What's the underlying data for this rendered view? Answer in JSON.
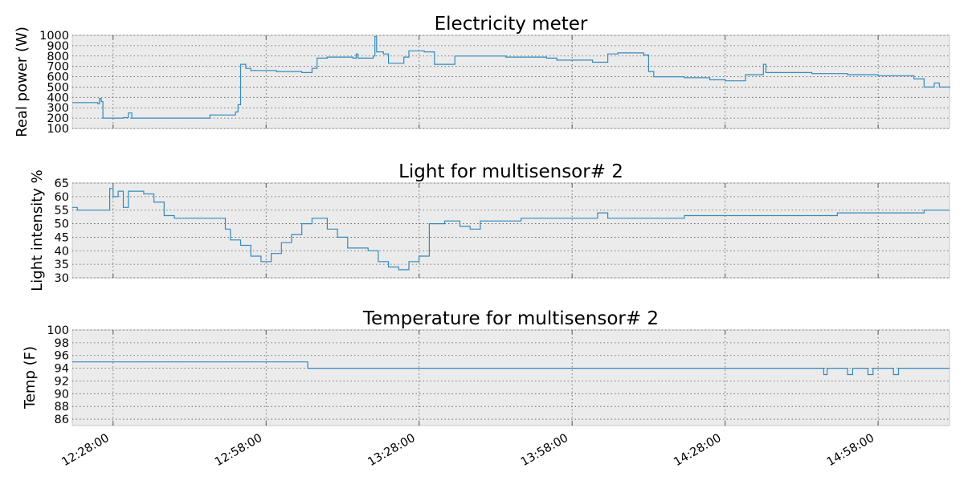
{
  "chart_data": {
    "type": "line",
    "x_ticks": [
      "12:28:00",
      "12:58:00",
      "13:28:00",
      "13:58:00",
      "14:28:00",
      "14:58:00"
    ],
    "xlim": [
      "12:20:00",
      "15:12:00"
    ],
    "grid": true,
    "panels": [
      {
        "title": "Electricity meter",
        "ylabel": "Real power (W)",
        "ylim": [
          100,
          1000
        ],
        "y_ticks": [
          100,
          200,
          300,
          400,
          500,
          600,
          700,
          800,
          900,
          1000
        ],
        "series": [
          {
            "color": "#348abd",
            "points": [
              [
                "12:20:00",
                350
              ],
              [
                "12:25:00",
                340
              ],
              [
                "12:25:20",
                390
              ],
              [
                "12:25:40",
                360
              ],
              [
                "12:26:00",
                200
              ],
              [
                "12:30:00",
                205
              ],
              [
                "12:31:00",
                250
              ],
              [
                "12:31:40",
                200
              ],
              [
                "12:45:00",
                200
              ],
              [
                "12:47:00",
                230
              ],
              [
                "12:52:00",
                260
              ],
              [
                "12:52:30",
                330
              ],
              [
                "12:53:00",
                720
              ],
              [
                "12:54:00",
                680
              ],
              [
                "12:55:00",
                660
              ],
              [
                "13:00:00",
                650
              ],
              [
                "13:05:00",
                640
              ],
              [
                "13:07:00",
                680
              ],
              [
                "13:08:00",
                780
              ],
              [
                "13:10:00",
                790
              ],
              [
                "13:15:00",
                780
              ],
              [
                "13:15:40",
                820
              ],
              [
                "13:16:00",
                780
              ],
              [
                "13:19:00",
                800
              ],
              [
                "13:19:20",
                990
              ],
              [
                "13:19:40",
                840
              ],
              [
                "13:21:00",
                820
              ],
              [
                "13:22:00",
                730
              ],
              [
                "13:25:00",
                790
              ],
              [
                "13:26:00",
                850
              ],
              [
                "13:29:00",
                840
              ],
              [
                "13:31:00",
                720
              ],
              [
                "13:35:00",
                800
              ],
              [
                "13:45:00",
                790
              ],
              [
                "13:53:00",
                780
              ],
              [
                "13:55:00",
                760
              ],
              [
                "14:02:00",
                740
              ],
              [
                "14:05:00",
                820
              ],
              [
                "14:07:00",
                830
              ],
              [
                "14:12:00",
                810
              ],
              [
                "14:13:00",
                650
              ],
              [
                "14:14:00",
                600
              ],
              [
                "14:20:00",
                590
              ],
              [
                "14:25:00",
                570
              ],
              [
                "14:28:00",
                560
              ],
              [
                "14:32:00",
                620
              ],
              [
                "14:35:00",
                620
              ],
              [
                "14:35:30",
                720
              ],
              [
                "14:36:00",
                640
              ],
              [
                "14:45:00",
                630
              ],
              [
                "14:52:00",
                620
              ],
              [
                "14:58:00",
                610
              ],
              [
                "15:05:00",
                580
              ],
              [
                "15:07:00",
                500
              ],
              [
                "15:09:00",
                540
              ],
              [
                "15:10:00",
                500
              ],
              [
                "15:12:00",
                490
              ]
            ]
          }
        ]
      },
      {
        "title": "Light for multisensor# 2",
        "ylabel": "Light intensity %",
        "ylim": [
          30,
          65
        ],
        "y_ticks": [
          30,
          35,
          40,
          45,
          50,
          55,
          60,
          65
        ],
        "series": [
          {
            "color": "#348abd",
            "points": [
              [
                "12:20:00",
                56
              ],
              [
                "12:21:00",
                55
              ],
              [
                "12:27:00",
                55
              ],
              [
                "12:27:20",
                63
              ],
              [
                "12:28:00",
                60
              ],
              [
                "12:29:00",
                62
              ],
              [
                "12:30:00",
                56
              ],
              [
                "12:31:00",
                62
              ],
              [
                "12:34:00",
                61
              ],
              [
                "12:36:00",
                58
              ],
              [
                "12:38:00",
                53
              ],
              [
                "12:40:00",
                52
              ],
              [
                "12:48:00",
                52
              ],
              [
                "12:50:00",
                48
              ],
              [
                "12:51:00",
                44
              ],
              [
                "12:53:00",
                42
              ],
              [
                "12:55:00",
                38
              ],
              [
                "12:57:00",
                36
              ],
              [
                "12:59:00",
                39
              ],
              [
                "13:01:00",
                43
              ],
              [
                "13:03:00",
                46
              ],
              [
                "13:05:00",
                50
              ],
              [
                "13:07:00",
                52
              ],
              [
                "13:10:00",
                48
              ],
              [
                "13:12:00",
                45
              ],
              [
                "13:14:00",
                41
              ],
              [
                "13:18:00",
                40
              ],
              [
                "13:20:00",
                36
              ],
              [
                "13:22:00",
                34
              ],
              [
                "13:24:00",
                33
              ],
              [
                "13:26:00",
                36
              ],
              [
                "13:28:00",
                38
              ],
              [
                "13:30:00",
                50
              ],
              [
                "13:33:00",
                51
              ],
              [
                "13:36:00",
                49
              ],
              [
                "13:38:00",
                48
              ],
              [
                "13:40:00",
                51
              ],
              [
                "13:48:00",
                52
              ],
              [
                "13:58:00",
                52
              ],
              [
                "14:03:00",
                54
              ],
              [
                "14:05:00",
                52
              ],
              [
                "14:15:00",
                52
              ],
              [
                "14:20:00",
                53
              ],
              [
                "14:30:00",
                53
              ],
              [
                "14:40:00",
                53
              ],
              [
                "14:50:00",
                54
              ],
              [
                "15:00:00",
                54
              ],
              [
                "15:07:00",
                55
              ],
              [
                "15:12:00",
                55
              ]
            ]
          }
        ]
      },
      {
        "title": "Temperature for multisensor# 2",
        "ylabel": "Temp (F)",
        "ylim": [
          85,
          100
        ],
        "y_ticks": [
          86,
          88,
          90,
          92,
          94,
          96,
          98,
          100
        ],
        "series": [
          {
            "color": "#348abd",
            "points": [
              [
                "12:20:00",
                95
              ],
              [
                "13:06:00",
                95
              ],
              [
                "13:06:10",
                94
              ],
              [
                "14:47:00",
                94
              ],
              [
                "14:47:20",
                93
              ],
              [
                "14:48:00",
                94
              ],
              [
                "14:52:00",
                93
              ],
              [
                "14:53:00",
                94
              ],
              [
                "14:56:00",
                93
              ],
              [
                "14:57:00",
                94
              ],
              [
                "15:01:00",
                93
              ],
              [
                "15:02:00",
                94
              ],
              [
                "15:12:00",
                94
              ]
            ]
          }
        ]
      }
    ]
  }
}
